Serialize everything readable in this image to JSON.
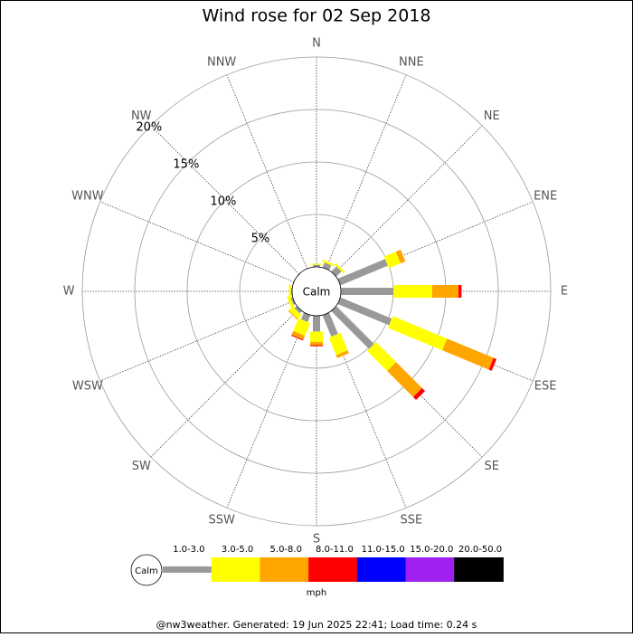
{
  "chart_data": {
    "type": "wind_rose",
    "title": "Wind rose for 02 Sep 2018",
    "categories": [
      "N",
      "NNE",
      "NE",
      "ENE",
      "E",
      "ESE",
      "SE",
      "SSE",
      "S",
      "SSW",
      "SW",
      "WSW",
      "W",
      "WNW",
      "NW",
      "NNW"
    ],
    "series": [
      {
        "name": "1.0-3.0",
        "color": "#999999",
        "values": [
          0.2,
          0.5,
          0.7,
          4.9,
          5.0,
          5.3,
          5.1,
          2.2,
          1.5,
          0.7,
          0.3,
          0.2,
          0.1,
          0,
          0,
          0
        ]
      },
      {
        "name": "3.0-5.0",
        "color": "#ffff00",
        "values": [
          0.1,
          0.2,
          0.2,
          1.2,
          3.7,
          5.6,
          2.7,
          1.8,
          1.0,
          1.3,
          0.5,
          0.3,
          0.2,
          0,
          0,
          0
        ]
      },
      {
        "name": "5.0-8.0",
        "color": "#ffa500",
        "values": [
          0,
          0,
          0,
          0.5,
          2.5,
          4.8,
          3.5,
          0.3,
          0.3,
          0.4,
          0.1,
          0,
          0,
          0,
          0,
          0
        ]
      },
      {
        "name": "8.0-11.0",
        "color": "#ff0000",
        "values": [
          0,
          0,
          0,
          0,
          0.3,
          0.3,
          0.4,
          0,
          0.1,
          0.1,
          0,
          0,
          0,
          0,
          0,
          0
        ]
      },
      {
        "name": "11.0-15.0",
        "color": "#0000ff",
        "values": [
          0,
          0,
          0,
          0,
          0,
          0,
          0,
          0,
          0,
          0,
          0,
          0,
          0,
          0,
          0,
          0
        ]
      },
      {
        "name": "15.0-20.0",
        "color": "#a020f0",
        "values": [
          0,
          0,
          0,
          0,
          0,
          0,
          0,
          0,
          0,
          0,
          0,
          0,
          0,
          0,
          0,
          0
        ]
      },
      {
        "name": "20.0-50.0",
        "color": "#000000",
        "values": [
          0,
          0,
          0,
          0,
          0,
          0,
          0,
          0,
          0,
          0,
          0,
          0,
          0,
          0,
          0,
          0
        ]
      }
    ],
    "ylim": [
      0,
      20
    ],
    "yticks": [
      {
        "value": 5,
        "label": "5%"
      },
      {
        "value": 10,
        "label": "10%"
      },
      {
        "value": 15,
        "label": "15%"
      },
      {
        "value": 20,
        "label": "20%"
      }
    ],
    "calm_label": "Calm",
    "legend_unit": "mph",
    "footer": "@nw3weather. Generated: 19 Jun 2025 22:41; Load time: 0.24 s"
  }
}
